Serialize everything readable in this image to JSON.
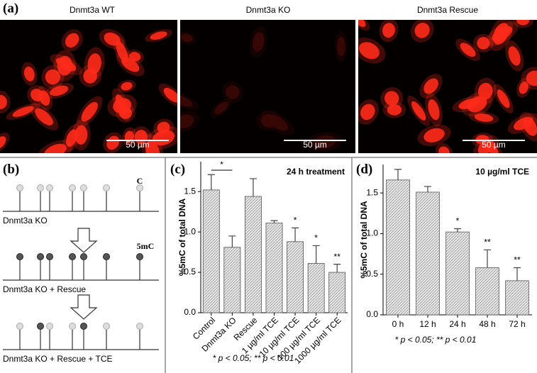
{
  "figure": {
    "panel_a": {
      "label": "(a)",
      "images": [
        {
          "title": "Dnmt3a WT",
          "scale_bar": "50 µm"
        },
        {
          "title": "Dnmt3a KO",
          "scale_bar": "50 µm"
        },
        {
          "title": "Dnmt3a Rescue",
          "scale_bar": "50 µm"
        }
      ]
    },
    "panel_b": {
      "label": "(b)",
      "c_label": "C",
      "mc_label": "5mC",
      "rows": [
        "Dnmt3a KO",
        "Dnmt3a KO + Rescue",
        "Dnmt3a KO + Rescue + TCE"
      ]
    }
  },
  "chart_data": [
    {
      "type": "bar",
      "panel_label": "(c)",
      "title": "24 h treatment",
      "y_label": "%5mC of total DNA",
      "categories": [
        "Control",
        "Dnmt3a KO",
        "Rescue",
        "1 µg/ml TCE",
        "10 µg/ml TCE",
        "100 µg/ml TCE",
        "1000 µg/ml TCE"
      ],
      "values": [
        1.52,
        0.81,
        1.44,
        1.11,
        0.88,
        0.61,
        0.5
      ],
      "errors": [
        0.19,
        0.14,
        0.22,
        0.03,
        0.17,
        0.22,
        0.1
      ],
      "significance": [
        null,
        null,
        null,
        null,
        "*",
        "*",
        "**"
      ],
      "bracket_label": "*",
      "footnote": "* p < 0.05; ** p < 0.01",
      "ylim": [
        0,
        1.87
      ],
      "yticks": [
        {
          "value": 0,
          "label": "0.0"
        },
        {
          "value": 0.5,
          "label": "0.5"
        },
        {
          "value": 1,
          "label": "1.0"
        },
        {
          "value": 1.5,
          "label": "1.5"
        }
      ],
      "color": "#d9d9d9"
    },
    {
      "type": "bar",
      "panel_label": "(d)",
      "title": "10 µg/ml TCE",
      "y_label": "%5mC of total DNA",
      "categories": [
        "0 h",
        "12 h",
        "24 h",
        "48 h",
        "72 h"
      ],
      "values": [
        1.66,
        1.51,
        1.02,
        0.58,
        0.42
      ],
      "errors": [
        0.13,
        0.07,
        0.04,
        0.22,
        0.16
      ],
      "significance": [
        null,
        null,
        "*",
        "**",
        "**"
      ],
      "footnote": "* p < 0.05; ** p < 0.01",
      "ylim": [
        0,
        1.85
      ],
      "yticks": [
        {
          "value": 0,
          "label": "0.0"
        },
        {
          "value": 0.5,
          "label": "0.5"
        },
        {
          "value": 1,
          "label": "1.0"
        },
        {
          "value": 1.5,
          "label": "1.5"
        }
      ],
      "color": "#d9d9d9"
    }
  ]
}
